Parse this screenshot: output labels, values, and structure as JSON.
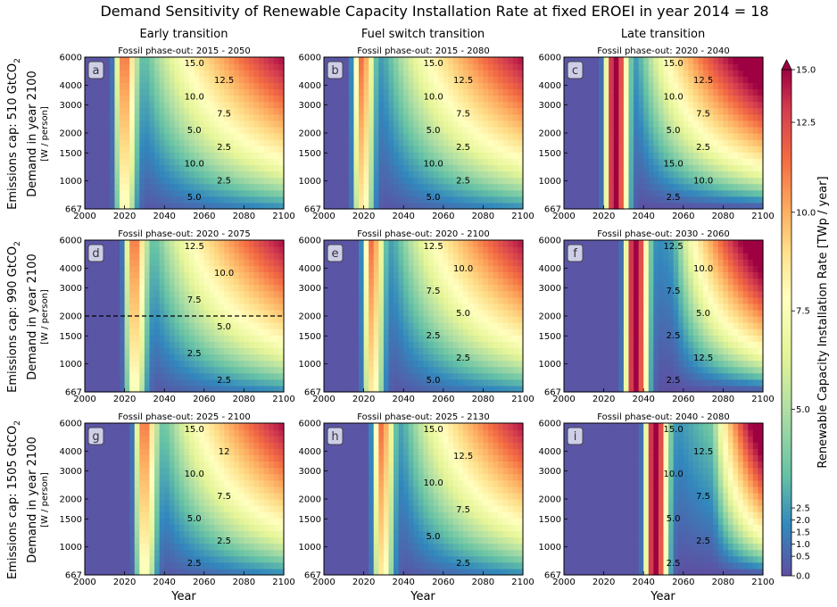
{
  "figure": {
    "title": "Demand Sensitivity of Renewable Capacity Installation Rate at fixed EROEI in year 2014 = 18",
    "column_titles": [
      "Early transition",
      "Fuel switch transition",
      "Late transition"
    ],
    "row_caps": [
      "Emissions cap: 510 GtCO",
      "Emissions cap: 990 GtCO",
      "Emissions cap: 1505 GtCO"
    ],
    "co2_subscript": "2",
    "ylabel": "Demand in year 2100",
    "ylabel_unit": "[W / person]",
    "xlabel": "Year",
    "colorbar_label": "Renewable Capacity Installation Rate [TWp / year]",
    "colorbar_ticks": [
      "0.0",
      "0.5",
      "1.0",
      "1.5",
      "2.0",
      "2.5",
      "5.0",
      "7.5",
      "10.0",
      "12.5",
      "15.0"
    ],
    "colorscale": [
      "#5e4fa2",
      "#3288bd",
      "#66c2a5",
      "#abdda4",
      "#e6f598",
      "#ffffbf",
      "#fee08b",
      "#fdae61",
      "#f46d43",
      "#d53e4f",
      "#9e0142"
    ]
  },
  "chart_data": [
    {
      "type": "heatmap",
      "panel_label": "a",
      "title": "Fossil phase-out: 2015 - 2050",
      "x_ticks": [
        "2000",
        "2020",
        "2040",
        "2060",
        "2080",
        "2100"
      ],
      "y_ticks": [
        "667",
        "1000",
        "1500",
        "2000",
        "3000",
        "4000",
        "6000"
      ],
      "xlim": [
        2000,
        2100
      ],
      "ylim": [
        667,
        6000
      ],
      "y_scale": "log",
      "phase_start": 2015,
      "phase_end": 2050,
      "mode": "early",
      "contour_labels": [
        "15.0",
        "12.5",
        "10.0",
        "7.5",
        "5.0",
        "2.5",
        "10.0",
        "2.5",
        "5.0"
      ]
    },
    {
      "type": "heatmap",
      "panel_label": "b",
      "title": "Fossil phase-out: 2015 - 2080",
      "x_ticks": [
        "2000",
        "2020",
        "2040",
        "2060",
        "2080",
        "2100"
      ],
      "y_ticks": [
        "667",
        "1000",
        "1500",
        "2000",
        "3000",
        "4000",
        "6000"
      ],
      "xlim": [
        2000,
        2100
      ],
      "ylim": [
        667,
        6000
      ],
      "y_scale": "log",
      "phase_start": 2015,
      "phase_end": 2080,
      "mode": "fuel",
      "contour_labels": [
        "15.0",
        "12.5",
        "10.0",
        "7.5",
        "5.0",
        "2.5",
        "10.0",
        "2.5",
        "5.0"
      ]
    },
    {
      "type": "heatmap",
      "panel_label": "c",
      "title": "Fossil phase-out: 2020 - 2040",
      "x_ticks": [
        "2000",
        "2020",
        "2040",
        "2060",
        "2080",
        "2100"
      ],
      "y_ticks": [
        "667",
        "1000",
        "1500",
        "2000",
        "3000",
        "4000",
        "6000"
      ],
      "xlim": [
        2000,
        2100
      ],
      "ylim": [
        667,
        6000
      ],
      "y_scale": "log",
      "phase_start": 2020,
      "phase_end": 2040,
      "mode": "late",
      "contour_labels": [
        "15.0",
        "12.5",
        "10.0",
        "7.5",
        "5.0",
        "2.5",
        "15.0",
        "10.0",
        "2.5"
      ]
    },
    {
      "type": "heatmap",
      "panel_label": "d",
      "title": "Fossil phase-out: 2020 - 2075",
      "x_ticks": [
        "2000",
        "2020",
        "2040",
        "2060",
        "2080",
        "2100"
      ],
      "y_ticks": [
        "667",
        "1000",
        "1500",
        "2000",
        "3000",
        "4000",
        "6000"
      ],
      "xlim": [
        2000,
        2100
      ],
      "ylim": [
        667,
        6000
      ],
      "y_scale": "log",
      "phase_start": 2020,
      "phase_end": 2075,
      "mode": "early",
      "dashed_reference_demand": 2000,
      "contour_labels": [
        "12.5",
        "10.0",
        "7.5",
        "5.0",
        "2.5",
        "2.5"
      ]
    },
    {
      "type": "heatmap",
      "panel_label": "e",
      "title": "Fossil phase-out: 2020 - 2100",
      "x_ticks": [
        "2000",
        "2020",
        "2040",
        "2060",
        "2080",
        "2100"
      ],
      "y_ticks": [
        "667",
        "1000",
        "1500",
        "2000",
        "3000",
        "4000",
        "6000"
      ],
      "xlim": [
        2000,
        2100
      ],
      "ylim": [
        667,
        6000
      ],
      "y_scale": "log",
      "phase_start": 2020,
      "phase_end": 2100,
      "mode": "fuel",
      "contour_labels": [
        "12.5",
        "10.0",
        "7.5",
        "5.0",
        "2.5",
        "2.5",
        "5.0"
      ]
    },
    {
      "type": "heatmap",
      "panel_label": "f",
      "title": "Fossil phase-out: 2030 - 2060",
      "x_ticks": [
        "2000",
        "2020",
        "2040",
        "2060",
        "2080",
        "2100"
      ],
      "y_ticks": [
        "667",
        "1000",
        "1500",
        "2000",
        "3000",
        "4000",
        "6000"
      ],
      "xlim": [
        2000,
        2100
      ],
      "ylim": [
        667,
        6000
      ],
      "y_scale": "log",
      "phase_start": 2030,
      "phase_end": 2060,
      "mode": "late",
      "contour_labels": [
        "12.5",
        "10.0",
        "7.5",
        "5.0",
        "2.5",
        "12.5",
        "2.5"
      ]
    },
    {
      "type": "heatmap",
      "panel_label": "g",
      "title": "Fossil phase-out: 2025 - 2100",
      "x_ticks": [
        "2000",
        "2020",
        "2040",
        "2060",
        "2080",
        "2100"
      ],
      "y_ticks": [
        "667",
        "1000",
        "1500",
        "2000",
        "3000",
        "4000",
        "6000"
      ],
      "xlim": [
        2000,
        2100
      ],
      "ylim": [
        667,
        6000
      ],
      "y_scale": "log",
      "phase_start": 2025,
      "phase_end": 2100,
      "mode": "early",
      "contour_labels": [
        "15.0",
        "12",
        "10.0",
        "7.5",
        "5.0",
        "2.5",
        "2.5"
      ]
    },
    {
      "type": "heatmap",
      "panel_label": "h",
      "title": "Fossil phase-out: 2025 - 2130",
      "x_ticks": [
        "2000",
        "2020",
        "2040",
        "2060",
        "2080",
        "2100"
      ],
      "y_ticks": [
        "667",
        "1000",
        "1500",
        "2000",
        "3000",
        "4000",
        "6000"
      ],
      "xlim": [
        2000,
        2100
      ],
      "ylim": [
        667,
        6000
      ],
      "y_scale": "log",
      "phase_start": 2025,
      "phase_end": 2130,
      "mode": "fuel",
      "contour_labels": [
        "15.0",
        "12.5",
        "10.0",
        "7.5",
        "5.0",
        "2.5"
      ]
    },
    {
      "type": "heatmap",
      "panel_label": "i",
      "title": "Fossil phase-out: 2040 - 2080",
      "x_ticks": [
        "2000",
        "2020",
        "2040",
        "2060",
        "2080",
        "2100"
      ],
      "y_ticks": [
        "667",
        "1000",
        "1500",
        "2000",
        "3000",
        "4000",
        "6000"
      ],
      "xlim": [
        2000,
        2100
      ],
      "ylim": [
        667,
        6000
      ],
      "y_scale": "log",
      "phase_start": 2040,
      "phase_end": 2080,
      "mode": "late",
      "contour_labels": [
        "15.0",
        "12.5",
        "10.0",
        "7.5",
        "5.0",
        "2.5",
        "2.5"
      ]
    }
  ]
}
